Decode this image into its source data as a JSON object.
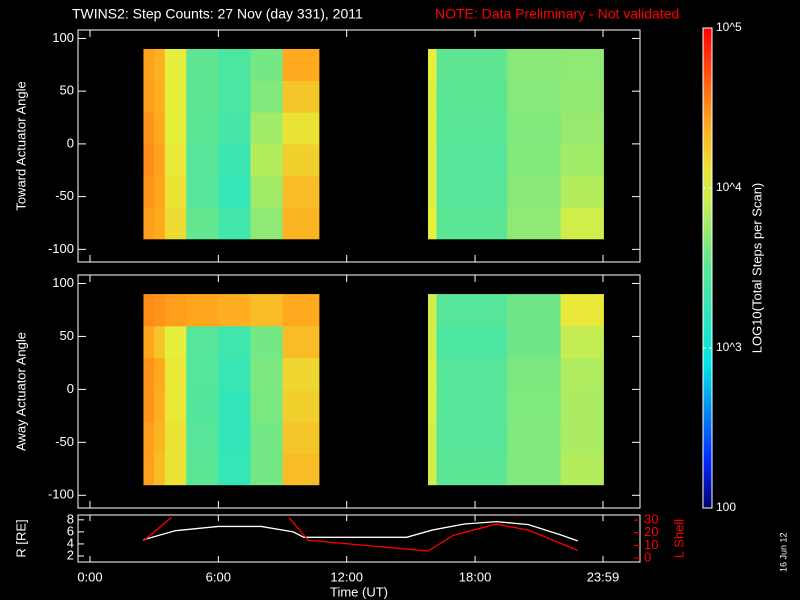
{
  "header": {
    "title": "TWINS2: Step Counts: 27 Nov (day 331), 2011",
    "note": "NOTE: Data Preliminary - Not validated",
    "stamp": "16 Jun 12"
  },
  "colorbar": {
    "label": "LOG10(Total Steps per Scan)",
    "zlim": [
      100,
      100000
    ],
    "log": true,
    "zticks": [
      {
        "value": 100,
        "label": "100"
      },
      {
        "value": 1000,
        "label": "10^3"
      },
      {
        "value": 10000,
        "label": "10^4"
      },
      {
        "value": 100000,
        "label": "10^5"
      }
    ]
  },
  "chart_data": [
    {
      "type": "heatmap",
      "ylabel": "Toward Actuator Angle",
      "xlim": [
        -0.56,
        25.71
      ],
      "xticks": [
        0,
        6,
        12,
        18,
        23.98
      ],
      "ylim": [
        -112,
        108
      ],
      "yticks": [
        -100,
        -50,
        0,
        50,
        100
      ],
      "x_bins": [
        2.5,
        3.0,
        3.5,
        4.5,
        6.0,
        7.5,
        9.0,
        10.7,
        15.8,
        16.2,
        19.5,
        22.0,
        24.0
      ],
      "y_bins": [
        -90,
        -60,
        -30,
        0,
        30,
        60,
        90
      ],
      "z": [
        [
          28000,
          25000,
          14000,
          3500,
          2200,
          5000,
          22000,
          null,
          11000,
          3200,
          5000,
          9000
        ],
        [
          30000,
          26000,
          13000,
          3000,
          1800,
          6000,
          20000,
          null,
          10000,
          3000,
          4800,
          7000
        ],
        [
          32000,
          27000,
          12000,
          3000,
          2000,
          7000,
          16000,
          null,
          10000,
          3000,
          4600,
          6000
        ],
        [
          30000,
          25000,
          11000,
          3200,
          2300,
          6000,
          13000,
          null,
          10000,
          3100,
          4500,
          5500
        ],
        [
          28000,
          24000,
          11000,
          3300,
          2500,
          4500,
          18000,
          null,
          10000,
          3200,
          4700,
          5200
        ],
        [
          27000,
          23000,
          11000,
          3300,
          2600,
          4000,
          25000,
          null,
          11000,
          3300,
          4800,
          5000
        ]
      ]
    },
    {
      "type": "heatmap",
      "ylabel": "Away Actuator Angle",
      "xlim": [
        -0.56,
        25.71
      ],
      "xticks": [
        0,
        6,
        12,
        18,
        23.98
      ],
      "ylim": [
        -112,
        108
      ],
      "yticks": [
        -100,
        -50,
        0,
        50,
        100
      ],
      "x_bins": [
        2.5,
        3.0,
        3.5,
        4.5,
        6.0,
        7.5,
        9.0,
        10.7,
        15.8,
        16.2,
        19.5,
        22.0,
        24.0
      ],
      "y_bins": [
        -90,
        -60,
        -30,
        0,
        30,
        60,
        90
      ],
      "z": [
        [
          27000,
          20000,
          13000,
          3200,
          1800,
          4000,
          20000,
          null,
          9000,
          3200,
          4500,
          7000
        ],
        [
          28000,
          22000,
          13000,
          3000,
          1700,
          4000,
          18000,
          null,
          9000,
          3000,
          4500,
          6500
        ],
        [
          30000,
          24000,
          12000,
          2800,
          1700,
          4200,
          16000,
          null,
          9500,
          3000,
          4400,
          6500
        ],
        [
          30000,
          25000,
          12000,
          2900,
          1900,
          4300,
          15000,
          null,
          9500,
          3000,
          4300,
          6800
        ],
        [
          26000,
          18000,
          11000,
          3000,
          2100,
          4000,
          20000,
          null,
          9000,
          2600,
          3800,
          8000
        ],
        [
          32000,
          30000,
          28000,
          26000,
          24000,
          20000,
          25000,
          null,
          9000,
          3000,
          3800,
          12000
        ]
      ]
    },
    {
      "type": "line",
      "xlabel": "Time (UT)",
      "ylabel": "R [RE]",
      "y2label": "L Shell",
      "xlim": [
        -0.56,
        25.71
      ],
      "xticks": [
        {
          "value": 0,
          "label": "0:00"
        },
        {
          "value": 6,
          "label": "6:00"
        },
        {
          "value": 12,
          "label": "12:00"
        },
        {
          "value": 18,
          "label": "18:00"
        },
        {
          "value": 23.98,
          "label": "23:59"
        }
      ],
      "ylim": [
        1,
        8.8
      ],
      "yticks": [
        2,
        4,
        6,
        8
      ],
      "y2lim": [
        -3.2,
        34
      ],
      "y2ticks": [
        0,
        10,
        20,
        30
      ],
      "y2color": "#ff0000",
      "series": [
        {
          "color": "#ffffff",
          "x": [
            2.5,
            4,
            6,
            8,
            9.5,
            10,
            12,
            14.8,
            16,
            17.5,
            19,
            20.5,
            22,
            22.8
          ],
          "values": [
            4.7,
            6.2,
            6.9,
            6.9,
            6.0,
            5.1,
            5.1,
            5.1,
            6.3,
            7.3,
            7.7,
            7.2,
            5.5,
            4.5
          ]
        },
        {
          "color": "#ff0000",
          "axis": "y2",
          "x": [
            2.5,
            3.8,
            6.5,
            9.3,
            10.2,
            15.8,
            17,
            19,
            20.5,
            22.8
          ],
          "values": [
            13.4,
            32,
            null,
            32,
            14,
            5.5,
            18,
            26.8,
            22,
            6
          ]
        }
      ]
    }
  ]
}
